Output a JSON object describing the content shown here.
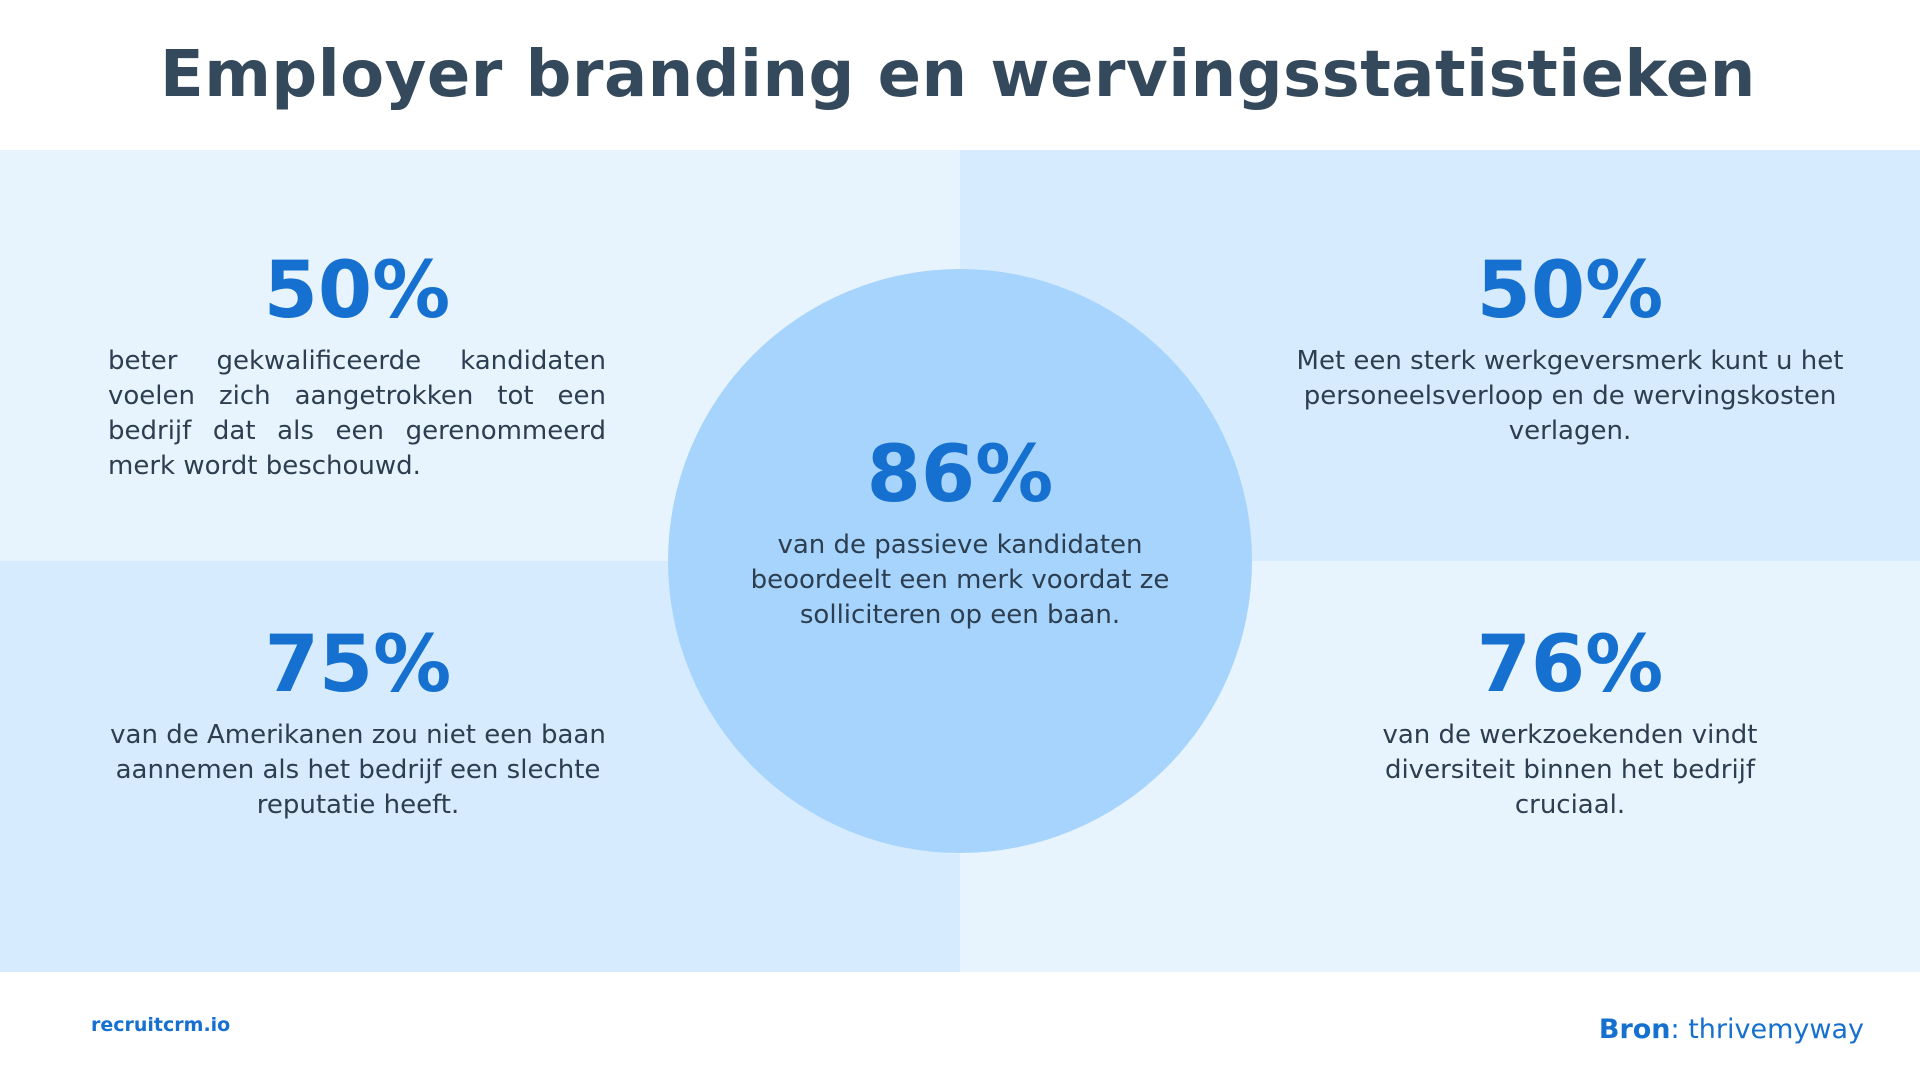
{
  "title": "Employer branding en wervingsstatistieken",
  "colors": {
    "accent": "#1570cf",
    "circle": "#a6d4fc",
    "panel_light": "#e8f4fd",
    "panel_mid": "#d6ebfd",
    "text": "#2c3e50"
  },
  "stats": {
    "top_left": {
      "value": "50%",
      "text": "beter gekwalificeerde kandidaten voelen zich aangetrokken tot een bedrijf dat als een gerenommeerd merk wordt beschouwd."
    },
    "top_right": {
      "value": "50%",
      "text": "Met een sterk werkgeversmerk kunt u het personeelsverloop en de wervingskosten verlagen."
    },
    "center": {
      "value": "86%",
      "text": "van de passieve kandidaten beoordeelt een merk voordat ze solliciteren op een baan."
    },
    "bottom_left": {
      "value": "75%",
      "text": "van de Amerikanen zou niet een baan aannemen als het bedrijf een slechte reputatie heeft."
    },
    "bottom_right": {
      "value": "76%",
      "text": "van de werkzoekenden vindt diversiteit binnen het bedrijf cruciaal."
    }
  },
  "footer": {
    "brand": "recruitcrm.io",
    "source_label": "Bron",
    "source_value": ": thrivemyway"
  }
}
